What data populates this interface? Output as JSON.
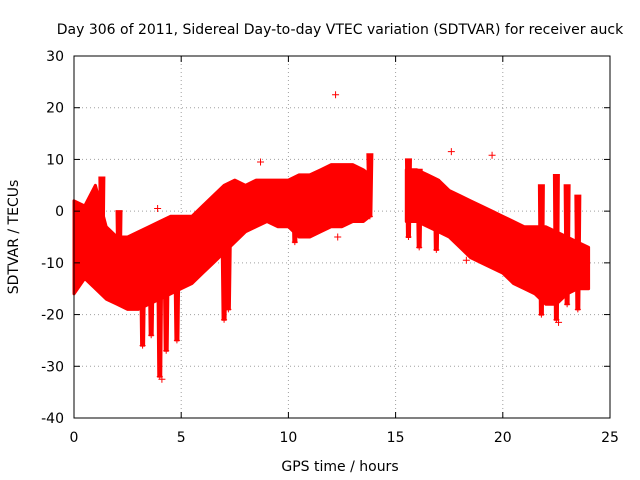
{
  "chart_data": {
    "type": "scatter",
    "title": "Day 306 of 2011, Sidereal Day-to-day VTEC variation (SDTVAR) for receiver auck",
    "xlabel": "GPS time / hours",
    "ylabel": "SDTVAR / TECUs",
    "xlim": [
      0,
      25
    ],
    "ylim": [
      -40,
      30
    ],
    "xticks": [
      0,
      5,
      10,
      15,
      20,
      25
    ],
    "yticks": [
      -40,
      -30,
      -20,
      -10,
      0,
      10,
      20,
      30
    ],
    "xtick_labels": [
      "0",
      "5",
      "10",
      "15",
      "20",
      "25"
    ],
    "ytick_labels": [
      "-40",
      "-30",
      "-20",
      "-10",
      "0",
      "10",
      "20",
      "30"
    ],
    "grid": true,
    "marker": "+",
    "color": "#ff0000",
    "series": [
      {
        "name": "SDTVAR",
        "band": {
          "x": [
            0.0,
            0.5,
            1.0,
            1.5,
            2.0,
            2.5,
            3.0,
            3.5,
            4.0,
            4.5,
            5.0,
            5.5,
            6.0,
            6.5,
            7.0,
            7.5,
            8.0,
            8.5,
            9.0,
            9.5,
            10.0,
            10.5,
            11.0,
            11.5,
            12.0,
            12.5,
            13.0,
            13.5,
            13.8
          ],
          "low": [
            -16,
            -13,
            -15,
            -17,
            -18,
            -19,
            -19,
            -18,
            -17,
            -16,
            -15,
            -14,
            -12,
            -10,
            -8,
            -6,
            -4,
            -3,
            -2,
            -3,
            -3,
            -5,
            -5,
            -4,
            -3,
            -3,
            -2,
            -2,
            -1
          ],
          "high": [
            2,
            1,
            5,
            -3,
            -5,
            -5,
            -4,
            -3,
            -2,
            -1,
            -1,
            -1,
            1,
            3,
            5,
            6,
            5,
            6,
            6,
            6,
            6,
            7,
            7,
            8,
            9,
            9,
            9,
            8,
            7
          ]
        },
        "band2": {
          "x": [
            15.5,
            16.0,
            16.5,
            17.0,
            17.5,
            18.0,
            18.5,
            19.0,
            19.5,
            20.0,
            20.5,
            21.0,
            21.5,
            22.0,
            22.5,
            23.0,
            23.5,
            24.0
          ],
          "low": [
            -2,
            -2,
            -3,
            -4,
            -5,
            -7,
            -9,
            -10,
            -11,
            -12,
            -14,
            -15,
            -16,
            -18,
            -18,
            -16,
            -15,
            -15
          ],
          "high": [
            8,
            8,
            7,
            6,
            4,
            3,
            2,
            1,
            0,
            -1,
            -2,
            -3,
            -3,
            -3,
            -4,
            -5,
            -6,
            -7
          ]
        },
        "spikes": [
          {
            "x": 1.3,
            "low": -12,
            "high": 6.5
          },
          {
            "x": 2.1,
            "low": -15,
            "high": 0
          },
          {
            "x": 3.2,
            "low": -26,
            "high": -10
          },
          {
            "x": 3.6,
            "low": -24,
            "high": -10
          },
          {
            "x": 4.0,
            "low": -32,
            "high": -10
          },
          {
            "x": 4.3,
            "low": -27,
            "high": -10
          },
          {
            "x": 4.8,
            "low": -25,
            "high": -10
          },
          {
            "x": 7.0,
            "low": -21,
            "high": -5
          },
          {
            "x": 7.2,
            "low": -19,
            "high": -5
          },
          {
            "x": 10.3,
            "low": -6,
            "high": 4
          },
          {
            "x": 13.8,
            "low": -1,
            "high": 11
          },
          {
            "x": 15.6,
            "low": -5,
            "high": 10
          },
          {
            "x": 16.1,
            "low": -7,
            "high": 8
          },
          {
            "x": 16.9,
            "low": -7.5,
            "high": 6
          },
          {
            "x": 21.8,
            "low": -20,
            "high": 5
          },
          {
            "x": 22.5,
            "low": -21,
            "high": 7
          },
          {
            "x": 23.0,
            "low": -18,
            "high": 5
          },
          {
            "x": 23.5,
            "low": -19,
            "high": 3
          }
        ],
        "outliers": [
          {
            "x": 12.2,
            "y": 22.5
          },
          {
            "x": 17.6,
            "y": 11.5
          },
          {
            "x": 19.5,
            "y": 10.8
          },
          {
            "x": 8.7,
            "y": 9.5
          },
          {
            "x": 3.9,
            "y": 0.5
          },
          {
            "x": 12.3,
            "y": -5
          },
          {
            "x": 18.3,
            "y": -9.5
          },
          {
            "x": 22.6,
            "y": -21.5
          },
          {
            "x": 4.1,
            "y": -32.5
          }
        ]
      }
    ]
  }
}
